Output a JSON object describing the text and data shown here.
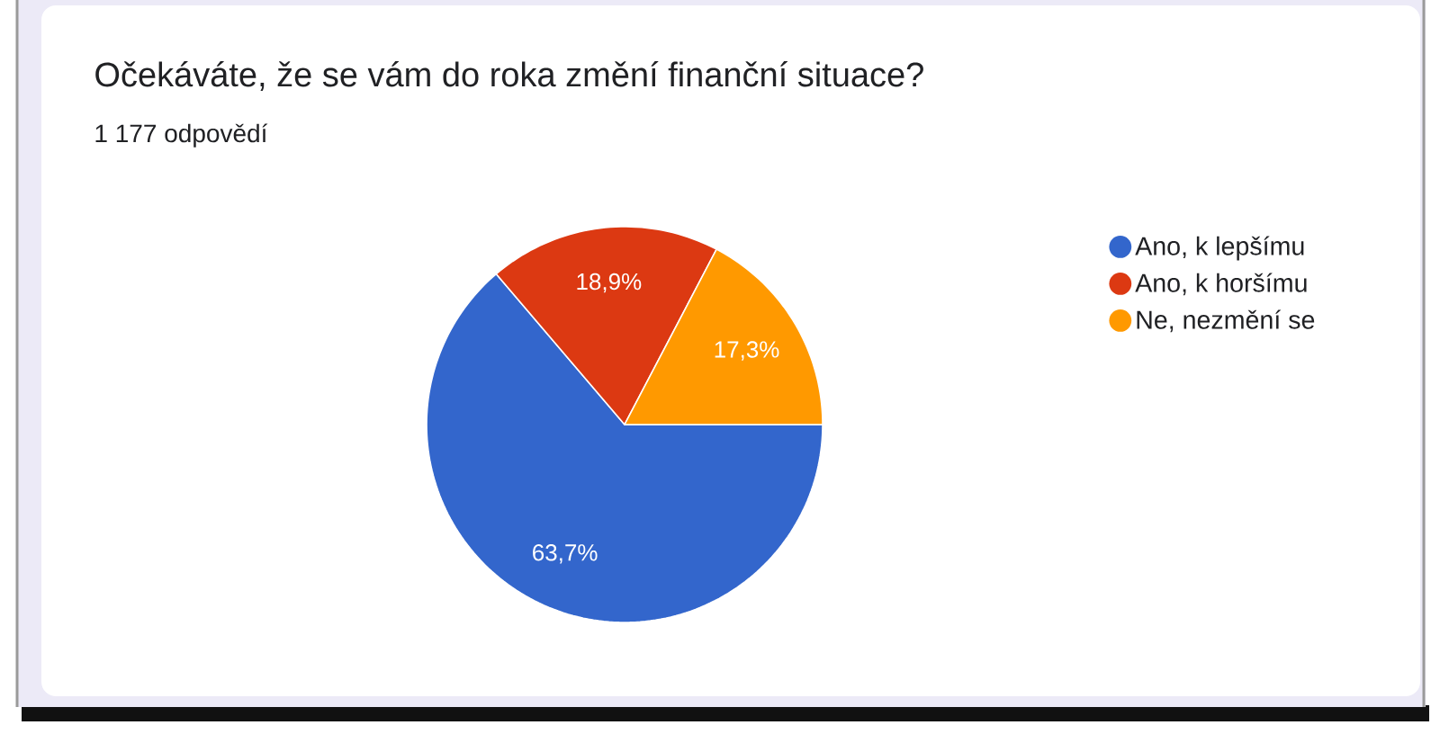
{
  "chart_data": {
    "type": "pie",
    "title": "Očekáváte, že se vám do roka změní finanční situace?",
    "subtitle": "1 177 odpovědí",
    "categories": [
      "Ano, k lepšímu",
      "Ano, k horšímu",
      "Ne, nezmění se"
    ],
    "values": [
      63.7,
      18.9,
      17.3
    ],
    "colors": [
      "#3366cc",
      "#dc3912",
      "#ff9900"
    ],
    "value_labels": [
      "63,7%",
      "18,9%",
      "17,3%"
    ],
    "legend": "right"
  }
}
